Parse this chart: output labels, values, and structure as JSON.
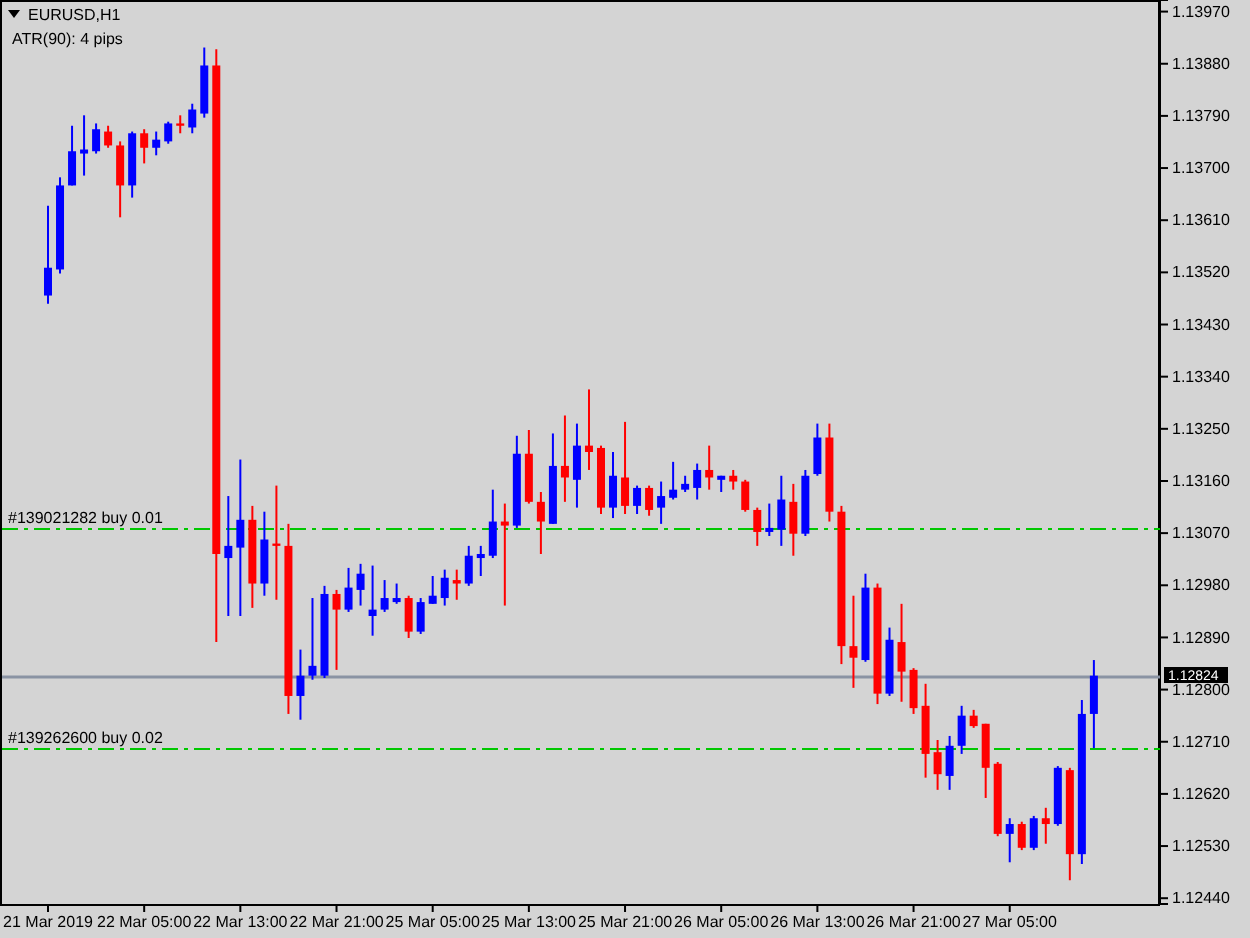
{
  "chart_data": {
    "type": "candlestick",
    "title": "EURUSD,H1",
    "annotations": [
      "ATR(90): 4 pips"
    ],
    "categories": [
      "21 Mar 2019",
      null,
      null,
      null,
      null,
      null,
      null,
      null,
      "22 Mar 05:00",
      null,
      null,
      null,
      null,
      null,
      null,
      null,
      "22 Mar 13:00",
      null,
      null,
      null,
      null,
      null,
      null,
      null,
      "22 Mar 21:00",
      null,
      null,
      null,
      null,
      null,
      null,
      null,
      "25 Mar 05:00",
      null,
      null,
      null,
      null,
      null,
      null,
      null,
      "25 Mar 13:00",
      null,
      null,
      null,
      null,
      null,
      null,
      null,
      "25 Mar 21:00",
      null,
      null,
      null,
      null,
      null,
      null,
      null,
      "26 Mar 05:00",
      null,
      null,
      null,
      null,
      null,
      null,
      null,
      "26 Mar 13:00",
      null,
      null,
      null,
      null,
      null,
      null,
      null,
      "26 Mar 21:00",
      null,
      null,
      null,
      null,
      null,
      null,
      null,
      "27 Mar 05:00",
      null,
      null,
      null,
      null,
      null,
      null,
      null
    ],
    "ohlc": [
      [
        1.1348,
        1.13635,
        1.13466,
        1.13528
      ],
      [
        1.13525,
        1.13684,
        1.13518,
        1.1367
      ],
      [
        1.1367,
        1.13773,
        1.1367,
        1.13729
      ],
      [
        1.13725,
        1.13791,
        1.13687,
        1.13732
      ],
      [
        1.13729,
        1.13777,
        1.13725,
        1.13767
      ],
      [
        1.13763,
        1.13773,
        1.13735,
        1.13739
      ],
      [
        1.13739,
        1.13746,
        1.13615,
        1.1367
      ],
      [
        1.1367,
        1.13763,
        1.13649,
        1.1376
      ],
      [
        1.1376,
        1.13767,
        1.13708,
        1.13735
      ],
      [
        1.13735,
        1.13763,
        1.13722,
        1.13749
      ],
      [
        1.13746,
        1.1378,
        1.13742,
        1.13777
      ],
      [
        1.13777,
        1.13791,
        1.1376,
        1.13773
      ],
      [
        1.1377,
        1.13811,
        1.1376,
        1.13801
      ],
      [
        1.13794,
        1.13908,
        1.13787,
        1.13877
      ],
      [
        1.13877,
        1.13905,
        1.12882,
        1.13034
      ],
      [
        1.13027,
        1.13134,
        1.12927,
        1.13048
      ],
      [
        1.13045,
        1.13197,
        1.12927,
        1.13093
      ],
      [
        1.13093,
        1.13117,
        1.12941,
        1.12983
      ],
      [
        1.12983,
        1.13107,
        1.12962,
        1.13059
      ],
      [
        1.13052,
        1.13152,
        1.12955,
        1.13048
      ],
      [
        1.13048,
        1.13086,
        1.12758,
        1.12789
      ],
      [
        1.12789,
        1.12869,
        1.12748,
        1.12824
      ],
      [
        1.12824,
        1.12958,
        1.12817,
        1.12841
      ],
      [
        1.12824,
        1.12979,
        1.1282,
        1.12965
      ],
      [
        1.12965,
        1.12972,
        1.12834,
        1.12938
      ],
      [
        1.12938,
        1.1301,
        1.12934,
        1.12976
      ],
      [
        1.12972,
        1.13017,
        1.12945,
        1.13
      ],
      [
        1.12927,
        1.13014,
        1.12893,
        1.12938
      ],
      [
        1.12938,
        1.12989,
        1.12934,
        1.12958
      ],
      [
        1.12951,
        1.12983,
        1.12948,
        1.12958
      ],
      [
        1.12958,
        1.12962,
        1.12889,
        1.129
      ],
      [
        1.129,
        1.12958,
        1.12896,
        1.12951
      ],
      [
        1.12948,
        1.12996,
        1.12948,
        1.12962
      ],
      [
        1.12958,
        1.13007,
        1.12945,
        1.12993
      ],
      [
        1.12989,
        1.13007,
        1.12955,
        1.12983
      ],
      [
        1.12983,
        1.13048,
        1.12979,
        1.13031
      ],
      [
        1.13027,
        1.13048,
        1.12996,
        1.13034
      ],
      [
        1.13031,
        1.13145,
        1.13027,
        1.1309
      ],
      [
        1.1309,
        1.13121,
        1.12945,
        1.13083
      ],
      [
        1.13083,
        1.13238,
        1.13079,
        1.13207
      ],
      [
        1.13207,
        1.13248,
        1.13121,
        1.13124
      ],
      [
        1.13124,
        1.13141,
        1.13034,
        1.1309
      ],
      [
        1.13086,
        1.13242,
        1.13086,
        1.13186
      ],
      [
        1.13186,
        1.13273,
        1.13124,
        1.13166
      ],
      [
        1.13162,
        1.13259,
        1.13114,
        1.13221
      ],
      [
        1.13221,
        1.13318,
        1.13179,
        1.1321
      ],
      [
        1.13217,
        1.13221,
        1.13103,
        1.13114
      ],
      [
        1.13114,
        1.1321,
        1.13096,
        1.13169
      ],
      [
        1.13166,
        1.13262,
        1.13103,
        1.13117
      ],
      [
        1.13117,
        1.13152,
        1.13103,
        1.13148
      ],
      [
        1.13148,
        1.13152,
        1.131,
        1.1311
      ],
      [
        1.13114,
        1.13159,
        1.13086,
        1.13134
      ],
      [
        1.13131,
        1.13193,
        1.13128,
        1.13145
      ],
      [
        1.13145,
        1.13169,
        1.13141,
        1.13155
      ],
      [
        1.13148,
        1.1319,
        1.13128,
        1.13179
      ],
      [
        1.13179,
        1.13221,
        1.13145,
        1.13166
      ],
      [
        1.13162,
        1.13169,
        1.13141,
        1.13169
      ],
      [
        1.13169,
        1.13179,
        1.13145,
        1.13159
      ],
      [
        1.13159,
        1.13162,
        1.13107,
        1.1311
      ],
      [
        1.1311,
        1.13114,
        1.13048,
        1.13072
      ],
      [
        1.13072,
        1.13121,
        1.13065,
        1.13079
      ],
      [
        1.13076,
        1.13169,
        1.13048,
        1.13128
      ],
      [
        1.13124,
        1.13155,
        1.13031,
        1.13069
      ],
      [
        1.13069,
        1.13179,
        1.13065,
        1.13169
      ],
      [
        1.13172,
        1.13259,
        1.13169,
        1.13235
      ],
      [
        1.13235,
        1.13259,
        1.1309,
        1.13107
      ],
      [
        1.13107,
        1.13117,
        1.12844,
        1.12875
      ],
      [
        1.12875,
        1.12962,
        1.12803,
        1.12855
      ],
      [
        1.12851,
        1.13,
        1.12848,
        1.12976
      ],
      [
        1.12976,
        1.12983,
        1.12775,
        1.12793
      ],
      [
        1.12793,
        1.12907,
        1.12789,
        1.12886
      ],
      [
        1.12882,
        1.12948,
        1.12779,
        1.12831
      ],
      [
        1.12834,
        1.12837,
        1.12758,
        1.12768
      ],
      [
        1.12772,
        1.1281,
        1.12648,
        1.12689
      ],
      [
        1.12692,
        1.12713,
        1.12627,
        1.12654
      ],
      [
        1.12651,
        1.1272,
        1.12627,
        1.12703
      ],
      [
        1.12703,
        1.12772,
        1.12689,
        1.12755
      ],
      [
        1.12755,
        1.12765,
        1.12734,
        1.12737
      ],
      [
        1.12741,
        1.12741,
        1.12613,
        1.12665
      ],
      [
        1.12672,
        1.12675,
        1.12547,
        1.12551
      ],
      [
        1.12551,
        1.12578,
        1.12502,
        1.12568
      ],
      [
        1.12568,
        1.12572,
        1.12523,
        1.12527
      ],
      [
        1.12527,
        1.12582,
        1.12523,
        1.12578
      ],
      [
        1.12578,
        1.12596,
        1.12534,
        1.12568
      ],
      [
        1.12568,
        1.12668,
        1.12565,
        1.12665
      ],
      [
        1.12661,
        1.12665,
        1.12471,
        1.12516
      ],
      [
        1.12516,
        1.12782,
        1.12499,
        1.12758
      ],
      [
        1.12758,
        1.12851,
        1.12699,
        1.12824
      ]
    ],
    "colors": [
      "#0000ff",
      "#0000ff",
      "#0000ff",
      "#0000ff",
      "#0000ff",
      "#ff0000",
      "#ff0000",
      "#0000ff",
      "#ff0000",
      "#0000ff",
      "#0000ff",
      "#ff0000",
      "#0000ff",
      "#0000ff",
      "#ff0000",
      "#0000ff",
      "#0000ff",
      "#ff0000",
      "#0000ff",
      "#ff0000",
      "#ff0000",
      "#0000ff",
      "#0000ff",
      "#0000ff",
      "#ff0000",
      "#0000ff",
      "#0000ff",
      "#0000ff",
      "#0000ff",
      "#0000ff",
      "#ff0000",
      "#0000ff",
      "#0000ff",
      "#0000ff",
      "#ff0000",
      "#0000ff",
      "#0000ff",
      "#0000ff",
      "#ff0000",
      "#0000ff",
      "#ff0000",
      "#ff0000",
      "#0000ff",
      "#ff0000",
      "#0000ff",
      "#ff0000",
      "#ff0000",
      "#0000ff",
      "#ff0000",
      "#0000ff",
      "#ff0000",
      "#0000ff",
      "#0000ff",
      "#0000ff",
      "#0000ff",
      "#ff0000",
      "#0000ff",
      "#ff0000",
      "#ff0000",
      "#ff0000",
      "#0000ff",
      "#0000ff",
      "#ff0000",
      "#0000ff",
      "#0000ff",
      "#ff0000",
      "#ff0000",
      "#ff0000",
      "#0000ff",
      "#ff0000",
      "#0000ff",
      "#ff0000",
      "#ff0000",
      "#ff0000",
      "#ff0000",
      "#0000ff",
      "#0000ff",
      "#ff0000",
      "#ff0000",
      "#ff0000",
      "#0000ff",
      "#ff0000",
      "#0000ff",
      "#ff0000",
      "#0000ff",
      "#ff0000",
      "#0000ff",
      "#0000ff"
    ],
    "ylim": [
      1.1243,
      1.1399
    ],
    "yticks": [
      {
        "value": 1.1397,
        "label": "1.13970"
      },
      {
        "value": 1.1388,
        "label": "1.13880"
      },
      {
        "value": 1.1379,
        "label": "1.13790"
      },
      {
        "value": 1.137,
        "label": "1.13700"
      },
      {
        "value": 1.1361,
        "label": "1.13610"
      },
      {
        "value": 1.1352,
        "label": "1.13520"
      },
      {
        "value": 1.1343,
        "label": "1.13430"
      },
      {
        "value": 1.1334,
        "label": "1.13340"
      },
      {
        "value": 1.1325,
        "label": "1.13250"
      },
      {
        "value": 1.1316,
        "label": "1.13160"
      },
      {
        "value": 1.1307,
        "label": "1.13070"
      },
      {
        "value": 1.1298,
        "label": "1.12980"
      },
      {
        "value": 1.1289,
        "label": "1.12890"
      },
      {
        "value": 1.128,
        "label": "1.12800"
      },
      {
        "value": 1.1271,
        "label": "1.12710"
      },
      {
        "value": 1.1262,
        "label": "1.12620"
      },
      {
        "value": 1.1253,
        "label": "1.12530"
      },
      {
        "value": 1.1244,
        "label": "1.12440"
      }
    ],
    "ref_lines": [
      {
        "axis": "y",
        "value": 1.1308,
        "label": "#139021282 buy 0.01",
        "color": "#00c800",
        "line_style": "dashed"
      },
      {
        "axis": "y",
        "value": 1.127,
        "label": "#139262600 buy 0.02",
        "color": "#00c800",
        "line_style": "dashed"
      },
      {
        "axis": "y",
        "value": 1.12824,
        "label": "1.12824",
        "color": "#8a93a3",
        "line_style": "solid"
      }
    ],
    "grid": false
  }
}
